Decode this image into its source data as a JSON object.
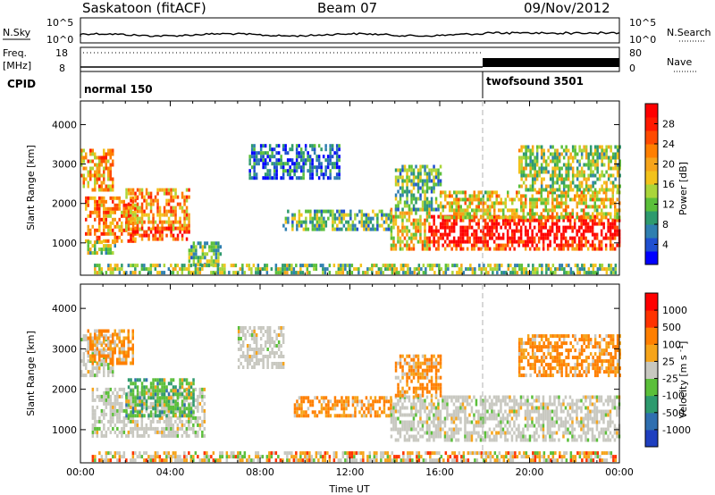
{
  "header": {
    "station": "Saskatoon (fitACF)",
    "beam": "Beam 07",
    "date": "09/Nov/2012"
  },
  "noise_panel": {
    "left_label": "N.Sky",
    "right_label": "N.Search",
    "tick_top": "10^5",
    "tick_bottom": "10^0"
  },
  "freq_panel": {
    "left_label_1": "Freq.",
    "left_label_2": "[MHz]",
    "right_label": "Nave",
    "left_tick_top": "18",
    "left_tick_bottom": "8",
    "right_tick_top": "80",
    "right_tick_bottom": "0"
  },
  "cpid_panel": {
    "label": "CPID",
    "modes": [
      {
        "name": "normal 150",
        "start_hour": 0.0
      },
      {
        "name": "twofsound 3501",
        "start_hour": 18.0
      }
    ]
  },
  "chart_data": [
    {
      "type": "heatmap",
      "name": "Power",
      "ylabel": "Slant Range [km]",
      "ylim": [
        180,
        4600
      ],
      "y_ticks": [
        "1000",
        "2000",
        "3000",
        "4000"
      ],
      "x_ticks": [
        "00:00",
        "04:00",
        "08:00",
        "12:00",
        "16:00",
        "20:00",
        "00:00"
      ],
      "xlim_hours": [
        0,
        24
      ],
      "colorbar": {
        "label": "Power [dB]",
        "ticks": [
          "4",
          "8",
          "12",
          "16",
          "20",
          "24",
          "28"
        ],
        "colors": [
          "#0000ff",
          "#1f4fd0",
          "#2f7fb0",
          "#2e9a6e",
          "#5bbf3a",
          "#aad53a",
          "#f2c21b",
          "#f6a41a",
          "#ff7f00",
          "#ff4a00",
          "#ff1a00",
          "#ff0000"
        ]
      },
      "echo_regions": [
        {
          "t0": 0.0,
          "t1": 1.4,
          "r0": 2300,
          "r1": 3300,
          "level": 0.65
        },
        {
          "t0": 0.2,
          "t1": 2.5,
          "r0": 1000,
          "r1": 2100,
          "level": 0.7
        },
        {
          "t0": 0.3,
          "t1": 1.5,
          "r0": 700,
          "r1": 1000,
          "level": 0.4
        },
        {
          "t0": 2.0,
          "t1": 4.8,
          "r0": 1300,
          "r1": 2300,
          "level": 0.65
        },
        {
          "t0": 2.2,
          "t1": 4.8,
          "r0": 1050,
          "r1": 1400,
          "level": 0.85
        },
        {
          "t0": 4.8,
          "t1": 6.2,
          "r0": 400,
          "r1": 1000,
          "level": 0.35
        },
        {
          "t0": 7.5,
          "t1": 11.5,
          "r0": 2600,
          "r1": 3500,
          "level": 0.15
        },
        {
          "t0": 9.0,
          "t1": 13.8,
          "r0": 1300,
          "r1": 1800,
          "level": 0.35
        },
        {
          "t0": 13.8,
          "t1": 15.5,
          "r0": 800,
          "r1": 1800,
          "level": 0.55
        },
        {
          "t0": 14.0,
          "t1": 16.0,
          "r0": 1800,
          "r1": 2900,
          "level": 0.35
        },
        {
          "t0": 15.5,
          "t1": 24.0,
          "r0": 800,
          "r1": 1700,
          "level": 0.9
        },
        {
          "t0": 16.0,
          "t1": 24.0,
          "r0": 1600,
          "r1": 2300,
          "level": 0.55
        },
        {
          "t0": 19.5,
          "t1": 24.0,
          "r0": 2300,
          "r1": 3400,
          "level": 0.45
        },
        {
          "t0": 0.5,
          "t1": 23.8,
          "r0": 200,
          "r1": 450,
          "level": 0.4
        }
      ]
    },
    {
      "type": "heatmap",
      "name": "Velocity",
      "ylabel": "Slant Range [km]",
      "ylim": [
        180,
        4600
      ],
      "y_ticks": [
        "1000",
        "2000",
        "3000",
        "4000"
      ],
      "x_ticks": [
        "00:00",
        "04:00",
        "08:00",
        "12:00",
        "16:00",
        "20:00",
        "00:00"
      ],
      "xlim_hours": [
        0,
        24
      ],
      "xlabel": "Time UT",
      "colorbar": {
        "label": "Velocity [m s^-1]",
        "ticks": [
          "1000",
          "500",
          "100",
          "25",
          "-25",
          "-100",
          "-500",
          "-1000"
        ],
        "colors": [
          "#1f3fbf",
          "#2f6fb0",
          "#2e9a6e",
          "#5bbf3a",
          "#c8c8c0",
          "#f6a41a",
          "#ff7f00",
          "#ff3300",
          "#ff0000"
        ]
      },
      "echo_regions": [
        {
          "t0": 0.0,
          "t1": 1.4,
          "r0": 2300,
          "r1": 3300,
          "kind": "gray"
        },
        {
          "t0": 0.3,
          "t1": 2.3,
          "r0": 2600,
          "r1": 3400,
          "kind": "orange"
        },
        {
          "t0": 0.5,
          "t1": 5.5,
          "r0": 800,
          "r1": 2000,
          "kind": "gray"
        },
        {
          "t0": 2.0,
          "t1": 5.0,
          "r0": 1300,
          "r1": 2200,
          "kind": "green"
        },
        {
          "t0": 7.0,
          "t1": 9.0,
          "r0": 2500,
          "r1": 3500,
          "kind": "gray"
        },
        {
          "t0": 9.5,
          "t1": 13.8,
          "r0": 1300,
          "r1": 1800,
          "kind": "orange"
        },
        {
          "t0": 13.8,
          "t1": 24.0,
          "r0": 700,
          "r1": 1800,
          "kind": "gray"
        },
        {
          "t0": 14.0,
          "t1": 16.0,
          "r0": 1800,
          "r1": 2800,
          "kind": "orange"
        },
        {
          "t0": 19.5,
          "t1": 24.0,
          "r0": 2300,
          "r1": 3300,
          "kind": "orange"
        },
        {
          "t0": 0.5,
          "t1": 23.8,
          "r0": 200,
          "r1": 450,
          "kind": "mixed"
        }
      ]
    }
  ],
  "colors": {
    "axis": "#000000",
    "background": "#ffffff",
    "mode_divider": "#b0b0b0"
  }
}
